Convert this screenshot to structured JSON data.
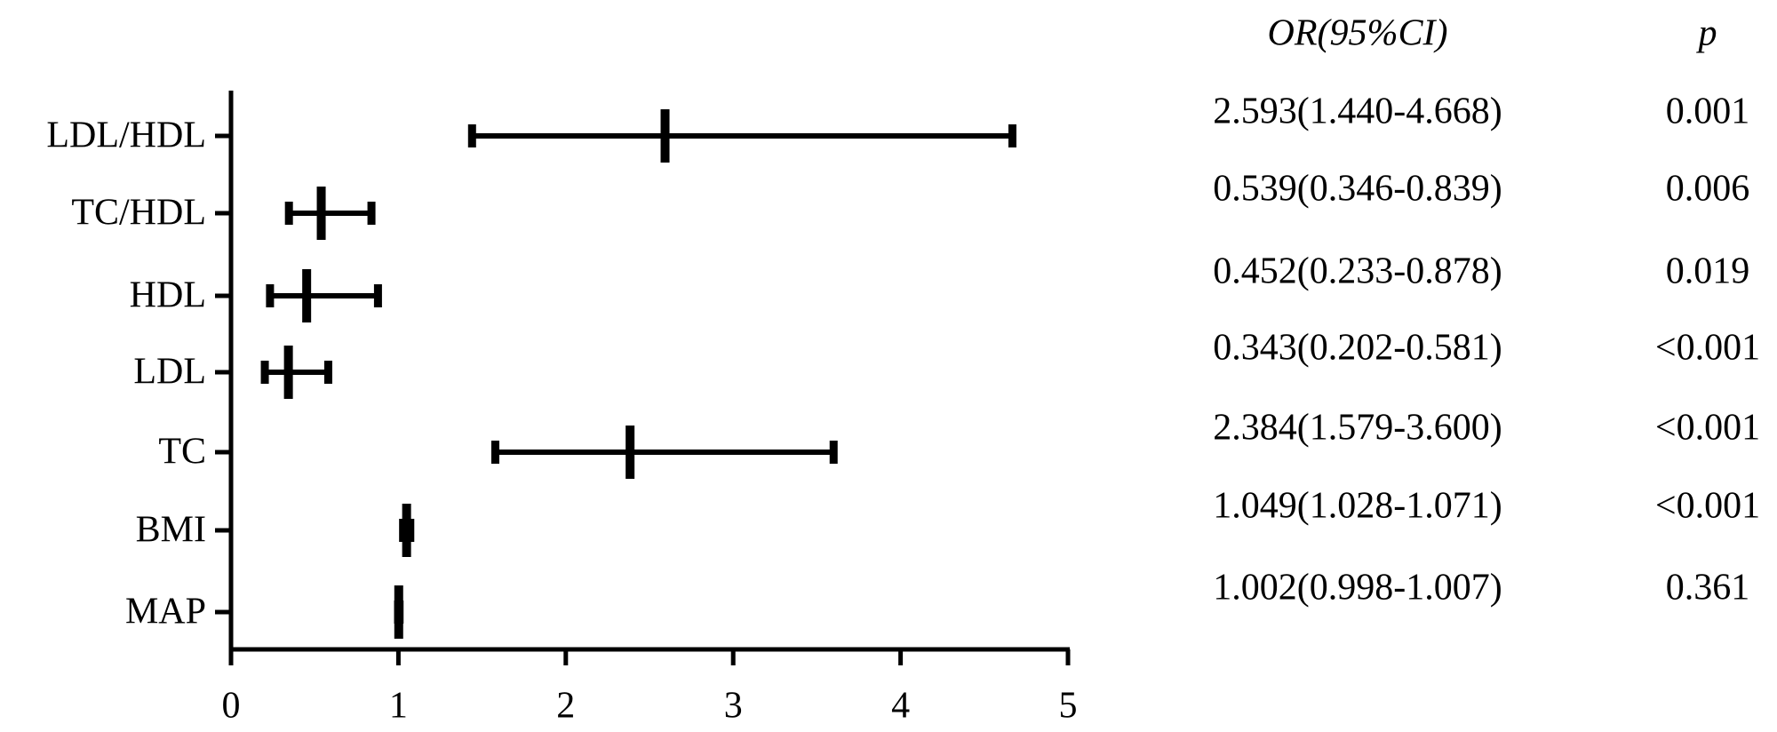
{
  "chart_data": {
    "type": "forest",
    "categories": [
      "LDL/HDL",
      "TC/HDL",
      "HDL",
      "LDL",
      "TC",
      "BMI",
      "MAP"
    ],
    "values": [
      2.593,
      0.539,
      0.452,
      0.343,
      2.384,
      1.049,
      1.002
    ],
    "lower": [
      1.44,
      0.346,
      0.233,
      0.202,
      1.579,
      1.028,
      0.998
    ],
    "upper": [
      4.668,
      0.839,
      0.878,
      0.581,
      3.6,
      1.071,
      1.007
    ],
    "value_labels": [
      "2.593(1.440-4.668)",
      "0.539(0.346-0.839)",
      "0.452(0.233-0.878)",
      "0.343(0.202-0.581)",
      "2.384(1.579-3.600)",
      "1.049(1.028-1.071)",
      "1.002(0.998-1.007)"
    ],
    "p_values": [
      "0.001",
      "0.006",
      "0.019",
      "<0.001",
      "<0.001",
      "<0.001",
      "0.361"
    ],
    "column_headers": [
      "OR(95%CI)",
      "p"
    ],
    "color": "#000000",
    "xlim": [
      0,
      5
    ],
    "xticks": [
      0,
      1,
      2,
      3,
      4,
      5
    ]
  }
}
